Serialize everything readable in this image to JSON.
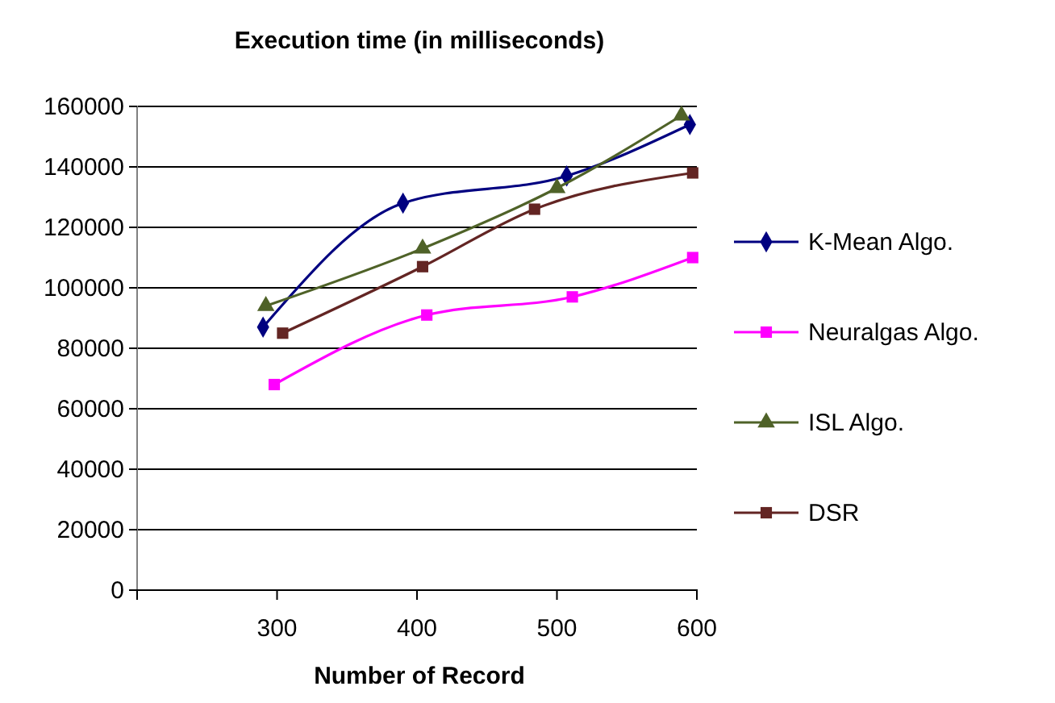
{
  "chart_data": {
    "type": "line",
    "title": "Execution time (in milliseconds)",
    "xlabel": "Number of Record",
    "xlim": [
      200,
      600
    ],
    "xticks": [
      300,
      400,
      500,
      600
    ],
    "ylim": [
      0,
      160000
    ],
    "yticks": [
      0,
      20000,
      40000,
      60000,
      80000,
      100000,
      120000,
      140000,
      160000
    ],
    "grid": "y",
    "legend": "right",
    "series": [
      {
        "name": "K-Mean Algo.",
        "color": "#000080",
        "marker": "diamond",
        "x": [
          290,
          390,
          507,
          595
        ],
        "values": [
          87000,
          128000,
          137000,
          154000
        ]
      },
      {
        "name": "Neuralgas Algo.",
        "color": "#ff00ff",
        "marker": "square",
        "x": [
          298,
          407,
          511,
          597
        ],
        "values": [
          68000,
          91000,
          97000,
          110000
        ]
      },
      {
        "name": "ISL Algo.",
        "color": "#4f6228",
        "marker": "triangle",
        "x": [
          292,
          404,
          500,
          589
        ],
        "values": [
          94000,
          113000,
          133000,
          157000
        ]
      },
      {
        "name": "DSR",
        "color": "#632523",
        "marker": "square",
        "x": [
          304,
          404,
          484,
          597
        ],
        "values": [
          85000,
          107000,
          126000,
          138000
        ]
      }
    ]
  }
}
